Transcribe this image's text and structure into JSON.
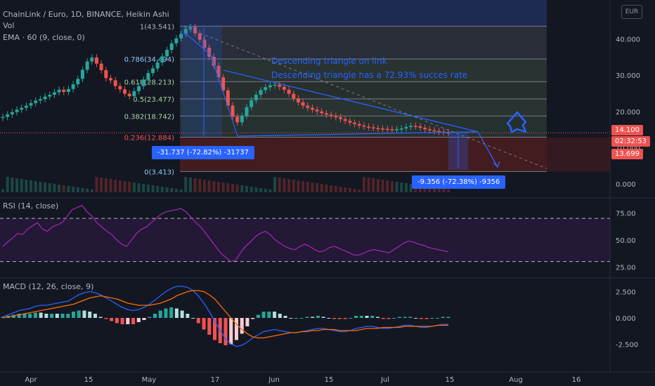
{
  "header": {
    "title": "ChainLink / Euro, 1D, BINANCE, Heikin Ashi",
    "vol_label": "Vol",
    "ema_label": "EMA · 60 (9, close, 0)",
    "rsi_label": "RSI (14, close)",
    "macd_label": "MACD (12, 26, close, 9)",
    "currency_button": "EUR"
  },
  "colors": {
    "background": "#131722",
    "up": "#26a69a",
    "down": "#ef5350",
    "accent": "#2962ff",
    "rsi": "#9c27b0",
    "macd": "#2962ff",
    "signal": "#ff6d00"
  },
  "annotations": {
    "line1": "Descending triangle on link",
    "line2": "Descending triangle has a 72.93% succes rate",
    "measure1": "-31.737 (-72.82%) -31737",
    "measure2": "-9.356 (-72.38%) -9356"
  },
  "price_badges": {
    "last": "14.100",
    "countdown": "02:32:53",
    "ema": "13.699"
  },
  "chart_data": [
    {
      "type": "candlestick",
      "title": "ChainLink / Euro, 1D, BINANCE, Heikin Ashi",
      "x_ticks": [
        "Apr",
        "15",
        "May",
        "17",
        "Jun",
        "15",
        "Jul",
        "15",
        "Aug",
        "16"
      ],
      "y_ticks": [
        "40.000",
        "30.000",
        "20.000",
        "10.000",
        "0.000"
      ],
      "ylim": [
        0,
        46
      ],
      "last_price": 14.1,
      "ema_value": 13.699,
      "fib_levels": [
        {
          "label": "1(43.541)",
          "value": 43.541
        },
        {
          "label": "0.786(34.494)",
          "value": 34.494
        },
        {
          "label": "0.618(28.213)",
          "value": 28.213
        },
        {
          "label": "0.5(23.477)",
          "value": 23.477
        },
        {
          "label": "0.382(18.742)",
          "value": 18.742
        },
        {
          "label": "0.236(12.884)",
          "value": 12.884
        },
        {
          "label": "0(3.413)",
          "value": 3.413
        }
      ],
      "price_close": [
        18.5,
        19.2,
        19.8,
        20.5,
        21.0,
        21.6,
        22.3,
        23.0,
        23.4,
        24.1,
        24.6,
        25.3,
        26.0,
        25.4,
        26.2,
        27.5,
        29.0,
        31.5,
        33.8,
        34.9,
        33.2,
        31.4,
        29.2,
        28.6,
        27.0,
        26.1,
        24.9,
        24.2,
        25.6,
        27.0,
        28.8,
        30.6,
        31.9,
        33.5,
        35.2,
        37.0,
        38.8,
        40.2,
        41.4,
        42.8,
        43.3,
        41.6,
        39.8,
        37.6,
        35.1,
        32.6,
        29.4,
        25.8,
        21.6,
        18.5,
        17.0,
        18.8,
        21.2,
        23.1,
        24.6,
        25.9,
        26.7,
        27.2,
        27.4,
        26.8,
        26.0,
        24.9,
        23.6,
        22.5,
        21.6,
        21.0,
        20.5,
        20.0,
        19.5,
        19.1,
        18.8,
        18.4,
        17.9,
        17.4,
        16.9,
        16.5,
        16.1,
        15.8,
        15.6,
        15.4,
        15.3,
        15.2,
        15.1,
        15.0,
        15.1,
        15.3,
        15.7,
        16.0,
        15.9,
        15.5,
        15.1,
        14.8,
        14.6,
        14.4,
        14.2,
        14.1
      ]
    },
    {
      "type": "line",
      "title": "RSI (14, close)",
      "y_ticks": [
        "75.00",
        "50.00",
        "25.00"
      ],
      "ylim": [
        20,
        85
      ],
      "bands": [
        70,
        30
      ],
      "values": [
        44,
        48,
        52,
        56,
        55,
        60,
        63,
        66,
        60,
        58,
        62,
        64,
        66,
        72,
        78,
        80,
        82,
        76,
        72,
        66,
        62,
        58,
        55,
        50,
        46,
        44,
        50,
        56,
        60,
        62,
        66,
        70,
        74,
        76,
        77,
        78,
        79,
        76,
        71,
        66,
        62,
        56,
        50,
        44,
        38,
        34,
        30,
        31,
        38,
        44,
        48,
        53,
        56,
        58,
        55,
        50,
        47,
        44,
        42,
        41,
        44,
        46,
        44,
        41,
        39,
        40,
        43,
        44,
        42,
        40,
        38,
        36,
        36,
        38,
        40,
        41,
        40,
        39,
        38,
        41,
        44,
        47,
        49,
        48,
        46,
        45,
        43,
        42,
        41,
        40,
        39
      ]
    },
    {
      "type": "line",
      "title": "MACD (12, 26, close, 9)",
      "y_ticks": [
        "2.500",
        "0.000",
        "-2.500"
      ],
      "ylim": [
        -3.2,
        3.2
      ],
      "series": [
        {
          "name": "MACD",
          "values": [
            0.1,
            0.3,
            0.5,
            0.7,
            0.8,
            0.9,
            1.1,
            1.2,
            1.2,
            1.3,
            1.4,
            1.5,
            1.6,
            1.9,
            2.2,
            2.4,
            2.5,
            2.4,
            2.2,
            1.9,
            1.6,
            1.3,
            1.0,
            0.8,
            0.7,
            0.8,
            1.0,
            1.3,
            1.7,
            2.1,
            2.5,
            2.8,
            3.0,
            3.0,
            2.9,
            2.6,
            2.1,
            1.4,
            0.6,
            -0.3,
            -1.2,
            -2.0,
            -2.5,
            -2.7,
            -2.6,
            -2.3,
            -1.9,
            -1.6,
            -1.3,
            -1.2,
            -1.1,
            -1.2,
            -1.3,
            -1.4,
            -1.4,
            -1.3,
            -1.2,
            -1.1,
            -1.0,
            -1.0,
            -1.1,
            -1.2,
            -1.3,
            -1.3,
            -1.2,
            -1.0,
            -0.9,
            -0.8,
            -0.8,
            -0.9,
            -1.0,
            -1.0,
            -0.9,
            -0.8,
            -0.7,
            -0.7,
            -0.8,
            -0.9,
            -0.9,
            -0.8,
            -0.7,
            -0.6,
            -0.6
          ]
        },
        {
          "name": "Signal",
          "values": [
            0.0,
            0.1,
            0.2,
            0.3,
            0.4,
            0.5,
            0.6,
            0.7,
            0.8,
            0.9,
            1.0,
            1.1,
            1.2,
            1.3,
            1.5,
            1.7,
            1.9,
            2.0,
            2.1,
            2.0,
            1.9,
            1.8,
            1.6,
            1.4,
            1.3,
            1.2,
            1.2,
            1.2,
            1.3,
            1.4,
            1.6,
            1.8,
            2.1,
            2.3,
            2.5,
            2.6,
            2.6,
            2.5,
            2.2,
            1.8,
            1.2,
            0.6,
            0.0,
            -0.6,
            -1.1,
            -1.5,
            -1.8,
            -1.9,
            -1.9,
            -1.8,
            -1.7,
            -1.6,
            -1.5,
            -1.4,
            -1.4,
            -1.3,
            -1.3,
            -1.2,
            -1.2,
            -1.1,
            -1.1,
            -1.1,
            -1.2,
            -1.2,
            -1.2,
            -1.2,
            -1.1,
            -1.0,
            -1.0,
            -1.0,
            -0.9,
            -0.9,
            -0.9,
            -0.9,
            -0.8,
            -0.8,
            -0.8,
            -0.8,
            -0.8,
            -0.8,
            -0.7,
            -0.7,
            -0.7
          ]
        }
      ]
    }
  ]
}
